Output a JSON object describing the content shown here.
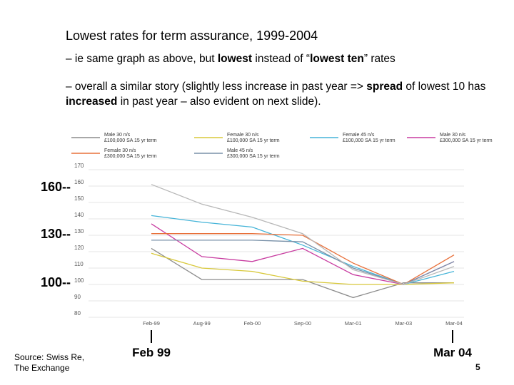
{
  "slide": {
    "title": "Lowest rates for term assurance, 1999-2004",
    "bullet1": {
      "pre": "– ie same graph as above, but ",
      "bold1": "lowest",
      "mid": " instead of “",
      "bold2": "lowest ten",
      "post": "” rates"
    },
    "bullet2": {
      "pre": "– overall a similar story (slightly less increase in past year => ",
      "bold1": "spread",
      "mid": " of lowest 10 has ",
      "bold2": "increased",
      "post": " in past year – also evident on next slide)."
    },
    "tick160": "160--",
    "tick130": "130--",
    "tick100": "100--",
    "marker_start": "Feb 99",
    "marker_end": "Mar 04",
    "source_line1": "Source: Swiss Re,",
    "source_line2": "The Exchange",
    "page_number": "5"
  },
  "chart_data": {
    "type": "line",
    "categories": [
      "Feb-99",
      "Aug-99",
      "Feb-00",
      "Sep-00",
      "Mar-01",
      "Mar-03",
      "Mar-04"
    ],
    "y_ticks": [
      "170",
      "160",
      "150",
      "140",
      "130",
      "120",
      "110",
      "100",
      "90",
      "80"
    ],
    "ylim": [
      80,
      170
    ],
    "grid": true,
    "legend_position": "top",
    "series": [
      {
        "name": "Male 30 n/s £100,000 SA 15 yr term",
        "color": "#8c8c8c",
        "values": [
          122,
          103,
          103,
          103,
          92,
          101,
          101
        ]
      },
      {
        "name": "Female 30 n/s £100,000 SA 15 yr term",
        "color": "#d8c83a",
        "values": [
          119,
          110,
          108,
          102,
          100,
          100,
          101
        ]
      },
      {
        "name": "Female 45 n/s £100,000 SA 15 yr term",
        "color": "#45b4d8",
        "values": [
          142,
          138,
          135,
          124,
          111,
          100,
          108
        ]
      },
      {
        "name": "Male 30 n/s £300,000 SA 15 yr term",
        "color": "#c83ca0",
        "values": [
          137,
          117,
          114,
          122,
          106,
          100,
          114
        ]
      },
      {
        "name": "Female 30 n/s £300,000 SA 15 yr term",
        "color": "#e8703a",
        "values": [
          131,
          131,
          131,
          130,
          113,
          100,
          118
        ]
      },
      {
        "name": "Male 45 n/s £300,000 SA 15 yr term",
        "color": "#7890a8",
        "values": [
          127,
          127,
          127,
          126,
          110,
          100,
          114
        ]
      },
      {
        "name": "",
        "color": "#b8b8b8",
        "values": [
          161,
          149,
          141,
          131,
          109,
          100,
          111
        ]
      }
    ]
  }
}
